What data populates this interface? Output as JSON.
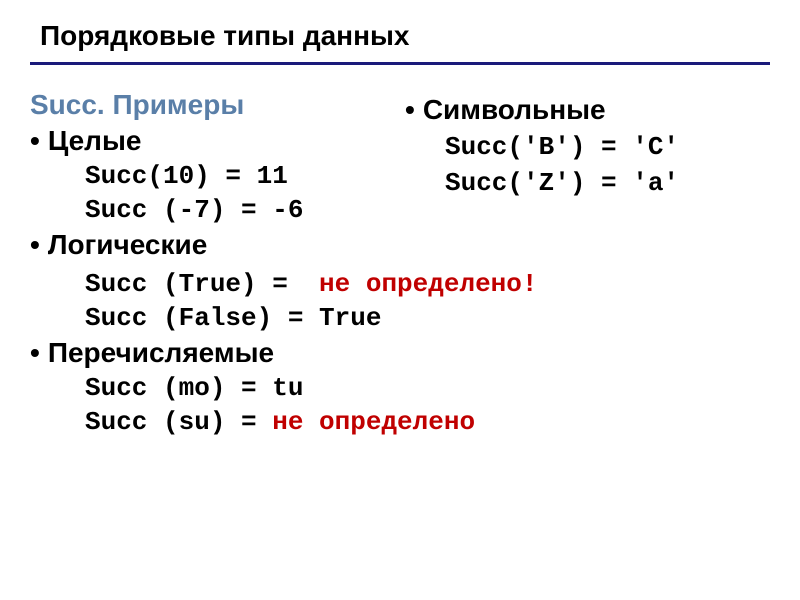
{
  "title": "Порядковые типы данных",
  "colors": {
    "title_underline": "#1a1a7a",
    "section_header": "#5a7fa8",
    "text": "#000000",
    "undefined": "#c00000",
    "background": "#ffffff"
  },
  "fonts": {
    "heading_size": 28,
    "body_size": 28,
    "code_size": 26,
    "code_family": "Courier New"
  },
  "left_sections": {
    "header": "Succ. Примеры",
    "integers": {
      "label": "Целые",
      "ex1": "Succ(10) = 11",
      "ex2": "Succ (-7) = -6"
    },
    "booleans": {
      "label": "Логические",
      "ex1_lhs": "Succ (True) = ",
      "ex1_rhs": "не определено!",
      "ex2": "Succ (False) = True"
    },
    "enums": {
      "label": "Перечисляемые",
      "ex1": "Succ (mo) = tu",
      "ex2_lhs": "Succ (su) = ",
      "ex2_rhs": "не определено"
    }
  },
  "right_sections": {
    "chars": {
      "label": "Символьные",
      "ex1": "Succ('B') = 'C'",
      "ex2": "Succ('Z') = 'a'"
    }
  }
}
